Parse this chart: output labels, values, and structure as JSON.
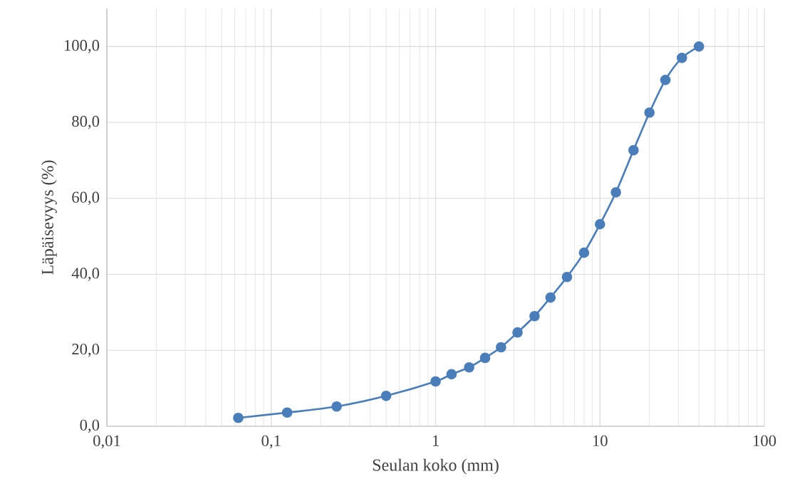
{
  "chart_data": {
    "type": "line",
    "xlabel": "Seulan koko (mm)",
    "ylabel": "Läpäisevyys (%)",
    "x": [
      0.063,
      0.125,
      0.25,
      0.5,
      1,
      1.25,
      1.6,
      2,
      2.5,
      3.15,
      4,
      5,
      6.3,
      8,
      10,
      12.5,
      16,
      20,
      25,
      31.5,
      40
    ],
    "series": [
      {
        "color": "#4a7ebb",
        "values": [
          2.2,
          3.6,
          5.2,
          8.0,
          11.8,
          13.7,
          15.5,
          18.0,
          20.8,
          24.7,
          29.0,
          33.9,
          39.3,
          45.7,
          53.2,
          61.6,
          72.7,
          82.6,
          91.2,
          97.0,
          100.0
        ]
      }
    ],
    "log": "x",
    "xlim": [
      0.01,
      100
    ],
    "xticks": [
      {
        "value": 0.01,
        "label": "0,01"
      },
      {
        "value": 0.1,
        "label": "0,1"
      },
      1,
      10,
      100
    ],
    "ylim": [
      0,
      110
    ],
    "yticks": [
      {
        "value": 0,
        "label": "0,0"
      },
      {
        "value": 20,
        "label": "20,0"
      },
      {
        "value": 40,
        "label": "40,0"
      },
      {
        "value": 60,
        "label": "60,0"
      },
      {
        "value": 80,
        "label": "80,0"
      },
      {
        "value": 100,
        "label": "100,0"
      }
    ],
    "grid": true,
    "marker": "circle",
    "line_style": "solid"
  }
}
